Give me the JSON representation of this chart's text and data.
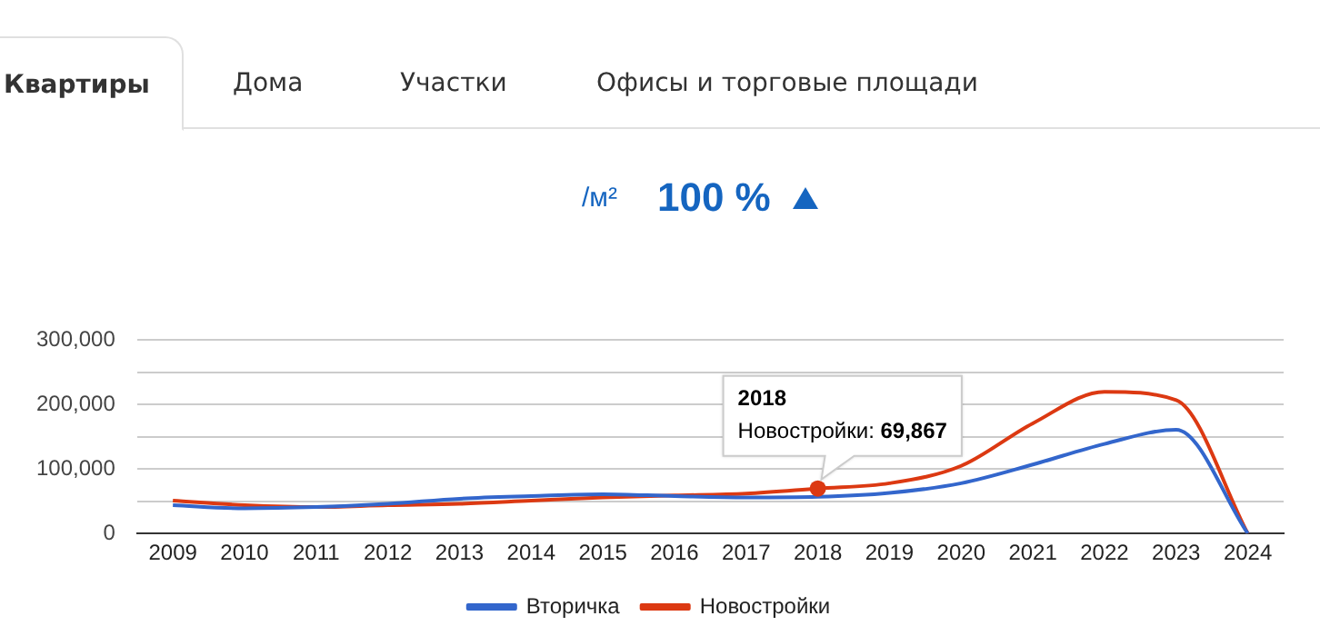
{
  "chart_data": {
    "type": "line",
    "categories": [
      "2009",
      "2010",
      "2011",
      "2012",
      "2013",
      "2014",
      "2015",
      "2016",
      "2017",
      "2018",
      "2019",
      "2020",
      "2021",
      "2022",
      "2023",
      "2024"
    ],
    "series": [
      {
        "name": "Вторичка",
        "color": "#3366cc",
        "values": [
          44000,
          39000,
          41000,
          46000,
          54000,
          58000,
          61000,
          58000,
          56000,
          57000,
          63000,
          78000,
          107000,
          139000,
          161000,
          0
        ]
      },
      {
        "name": "Новостройки",
        "color": "#dc3912",
        "values": [
          51000,
          44000,
          41000,
          44000,
          46000,
          51000,
          56000,
          59000,
          62000,
          69867,
          78000,
          105000,
          171000,
          220000,
          207000,
          0
        ]
      }
    ],
    "ylim": [
      0,
      300000
    ],
    "yticks": [
      0,
      {
        "value": 50000,
        "label": null
      },
      {
        "value": 100000,
        "label": "100,000"
      },
      {
        "value": 150000,
        "label": null
      },
      {
        "value": 200000,
        "label": "200,000"
      },
      {
        "value": 250000,
        "label": null
      },
      {
        "value": 300000,
        "label": "300,000"
      }
    ],
    "grid": "y",
    "legend": "bottom",
    "marker": "none",
    "line_style": "solid",
    "annotations": [
      "Квартиры",
      "Дома",
      "Участки",
      "Офисы и торговые площади",
      "/м²",
      "100 %",
      {
        "text": "Новостройки: 69,867",
        "x": "2018",
        "y": 69867
      }
    ]
  }
}
